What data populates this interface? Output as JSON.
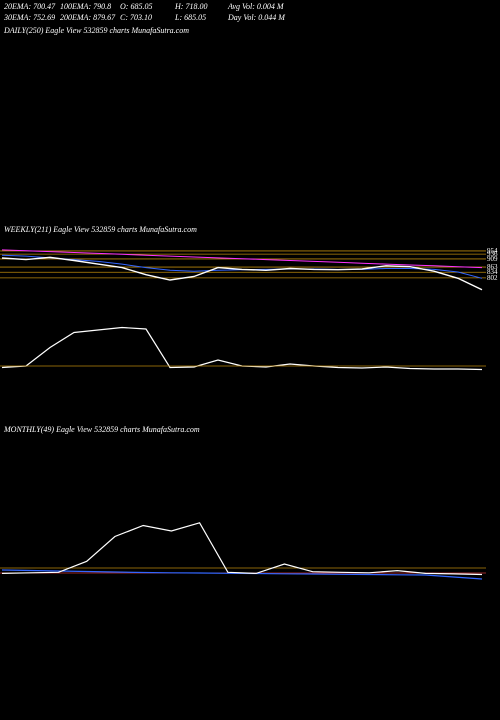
{
  "header": {
    "lines": [
      [
        "20EMA: 700.47",
        "100EMA: 790.8",
        "O: 685.05",
        "H: 718.00",
        "Avg Vol: 0.004  M"
      ],
      [
        "30EMA: 752.69",
        "200EMA: 879.67",
        "C: 703.10",
        "L: 685.05",
        "Day Vol: 0.044  M"
      ]
    ]
  },
  "daily": {
    "label": "DAILY(250) Eagle  View  532859 charts MunafaSutra.com"
  },
  "weekly": {
    "label": "WEEKLY(211) Eagle  View  532859 charts MunafaSutra.com",
    "ylim": [
      700,
      1010
    ],
    "yticks": [
      954,
      936,
      909,
      863,
      834,
      802
    ],
    "grid_color": "#b8860b",
    "series": [
      {
        "color": "#ffffff",
        "values": [
          914,
          905,
          918,
          900,
          880,
          860,
          820,
          790,
          810,
          860,
          850,
          845,
          855,
          850,
          848,
          852,
          870,
          865,
          840,
          800,
          735
        ]
      },
      {
        "color": "#ff33ff",
        "values": [
          960,
          955,
          950,
          945,
          940,
          935,
          930,
          925,
          920,
          915,
          910,
          905,
          900,
          895,
          890,
          885,
          880,
          875,
          870,
          865,
          860
        ]
      },
      {
        "color": "#3366ff",
        "values": [
          930,
          925,
          915,
          905,
          895,
          880,
          860,
          845,
          840,
          845,
          848,
          850,
          852,
          852,
          850,
          850,
          855,
          855,
          850,
          835,
          800
        ]
      }
    ],
    "volume": {
      "ylim": [
        0,
        100
      ],
      "color": "#ffffff",
      "values": [
        5,
        8,
        45,
        75,
        80,
        85,
        82,
        5,
        6,
        20,
        8,
        6,
        12,
        8,
        5,
        4,
        6,
        3,
        2,
        2,
        1
      ]
    }
  },
  "monthly": {
    "label": "MONTHLY(49) Eagle  View  532859 charts MunafaSutra.com",
    "price": {
      "ylim": [
        600,
        1100
      ],
      "color": "#3366ff",
      "values": [
        900,
        890,
        880,
        870,
        860,
        850,
        845,
        840,
        835,
        830,
        825,
        820,
        815,
        810,
        805,
        800,
        760,
        720
      ]
    },
    "volume": {
      "ylim": [
        0,
        100
      ],
      "color": "#ffffff",
      "values": [
        3,
        4,
        5,
        25,
        70,
        90,
        80,
        95,
        5,
        3,
        20,
        6,
        5,
        4,
        8,
        3,
        2,
        1
      ]
    }
  }
}
